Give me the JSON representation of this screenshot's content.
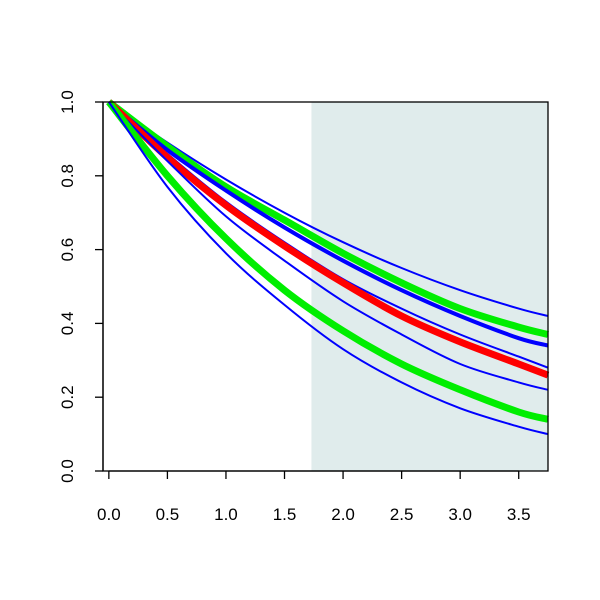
{
  "chart_data": {
    "type": "line",
    "title": "",
    "xlabel": "",
    "ylabel": "",
    "xlim": [
      -0.05,
      3.75
    ],
    "ylim": [
      0.0,
      1.0
    ],
    "grid": false,
    "legend": "none",
    "x_ticks": [
      "0.0",
      "0.5",
      "1.0",
      "1.5",
      "2.0",
      "2.5",
      "3.0",
      "3.5"
    ],
    "y_ticks": [
      "0.0",
      "0.2",
      "0.4",
      "0.6",
      "0.8",
      "1.0"
    ],
    "shaded_region": {
      "x_from": 1.73,
      "x_to": 3.75,
      "color": "#e0ecec"
    },
    "series": [
      {
        "color": "#0000ff",
        "width": "thin",
        "x": [
          0,
          0.5,
          1.0,
          1.5,
          2.0,
          2.5,
          3.0,
          3.5,
          3.75
        ],
        "y": [
          1.0,
          0.89,
          0.79,
          0.7,
          0.62,
          0.55,
          0.49,
          0.44,
          0.42
        ]
      },
      {
        "color": "#00ee00",
        "width": "thick",
        "x": [
          0,
          0.5,
          1.0,
          1.5,
          2.0,
          2.5,
          3.0,
          3.5,
          3.75
        ],
        "y": [
          1.0,
          0.88,
          0.77,
          0.68,
          0.59,
          0.51,
          0.44,
          0.39,
          0.37
        ]
      },
      {
        "color": "#0000ff",
        "width": "medium",
        "x": [
          0,
          0.5,
          1.0,
          1.5,
          2.0,
          2.5,
          3.0,
          3.5,
          3.75
        ],
        "y": [
          1.0,
          0.87,
          0.76,
          0.66,
          0.57,
          0.49,
          0.42,
          0.36,
          0.34
        ]
      },
      {
        "color": "#0000ff",
        "width": "thin",
        "x": [
          0,
          0.5,
          1.0,
          1.5,
          2.0,
          2.5,
          3.0,
          3.5,
          3.75
        ],
        "y": [
          1.0,
          0.86,
          0.73,
          0.62,
          0.52,
          0.44,
          0.37,
          0.31,
          0.28
        ]
      },
      {
        "color": "#ff0000",
        "width": "thick",
        "x": [
          0,
          0.5,
          1.0,
          1.5,
          2.0,
          2.5,
          3.0,
          3.5,
          3.75
        ],
        "y": [
          1.0,
          0.85,
          0.72,
          0.61,
          0.51,
          0.42,
          0.35,
          0.29,
          0.26
        ]
      },
      {
        "color": "#0000ff",
        "width": "thin",
        "x": [
          0,
          0.5,
          1.0,
          1.5,
          2.0,
          2.5,
          3.0,
          3.5,
          3.75
        ],
        "y": [
          1.0,
          0.84,
          0.69,
          0.57,
          0.46,
          0.37,
          0.29,
          0.24,
          0.22
        ]
      },
      {
        "color": "#00ee00",
        "width": "thick",
        "x": [
          0,
          0.5,
          1.0,
          1.5,
          2.0,
          2.5,
          3.0,
          3.5,
          3.75
        ],
        "y": [
          1.0,
          0.8,
          0.63,
          0.49,
          0.38,
          0.29,
          0.22,
          0.16,
          0.14
        ]
      },
      {
        "color": "#0000ff",
        "width": "thin",
        "x": [
          0,
          0.5,
          1.0,
          1.5,
          2.0,
          2.5,
          3.0,
          3.5,
          3.75
        ],
        "y": [
          1.0,
          0.77,
          0.59,
          0.45,
          0.33,
          0.24,
          0.17,
          0.12,
          0.1
        ]
      }
    ]
  }
}
